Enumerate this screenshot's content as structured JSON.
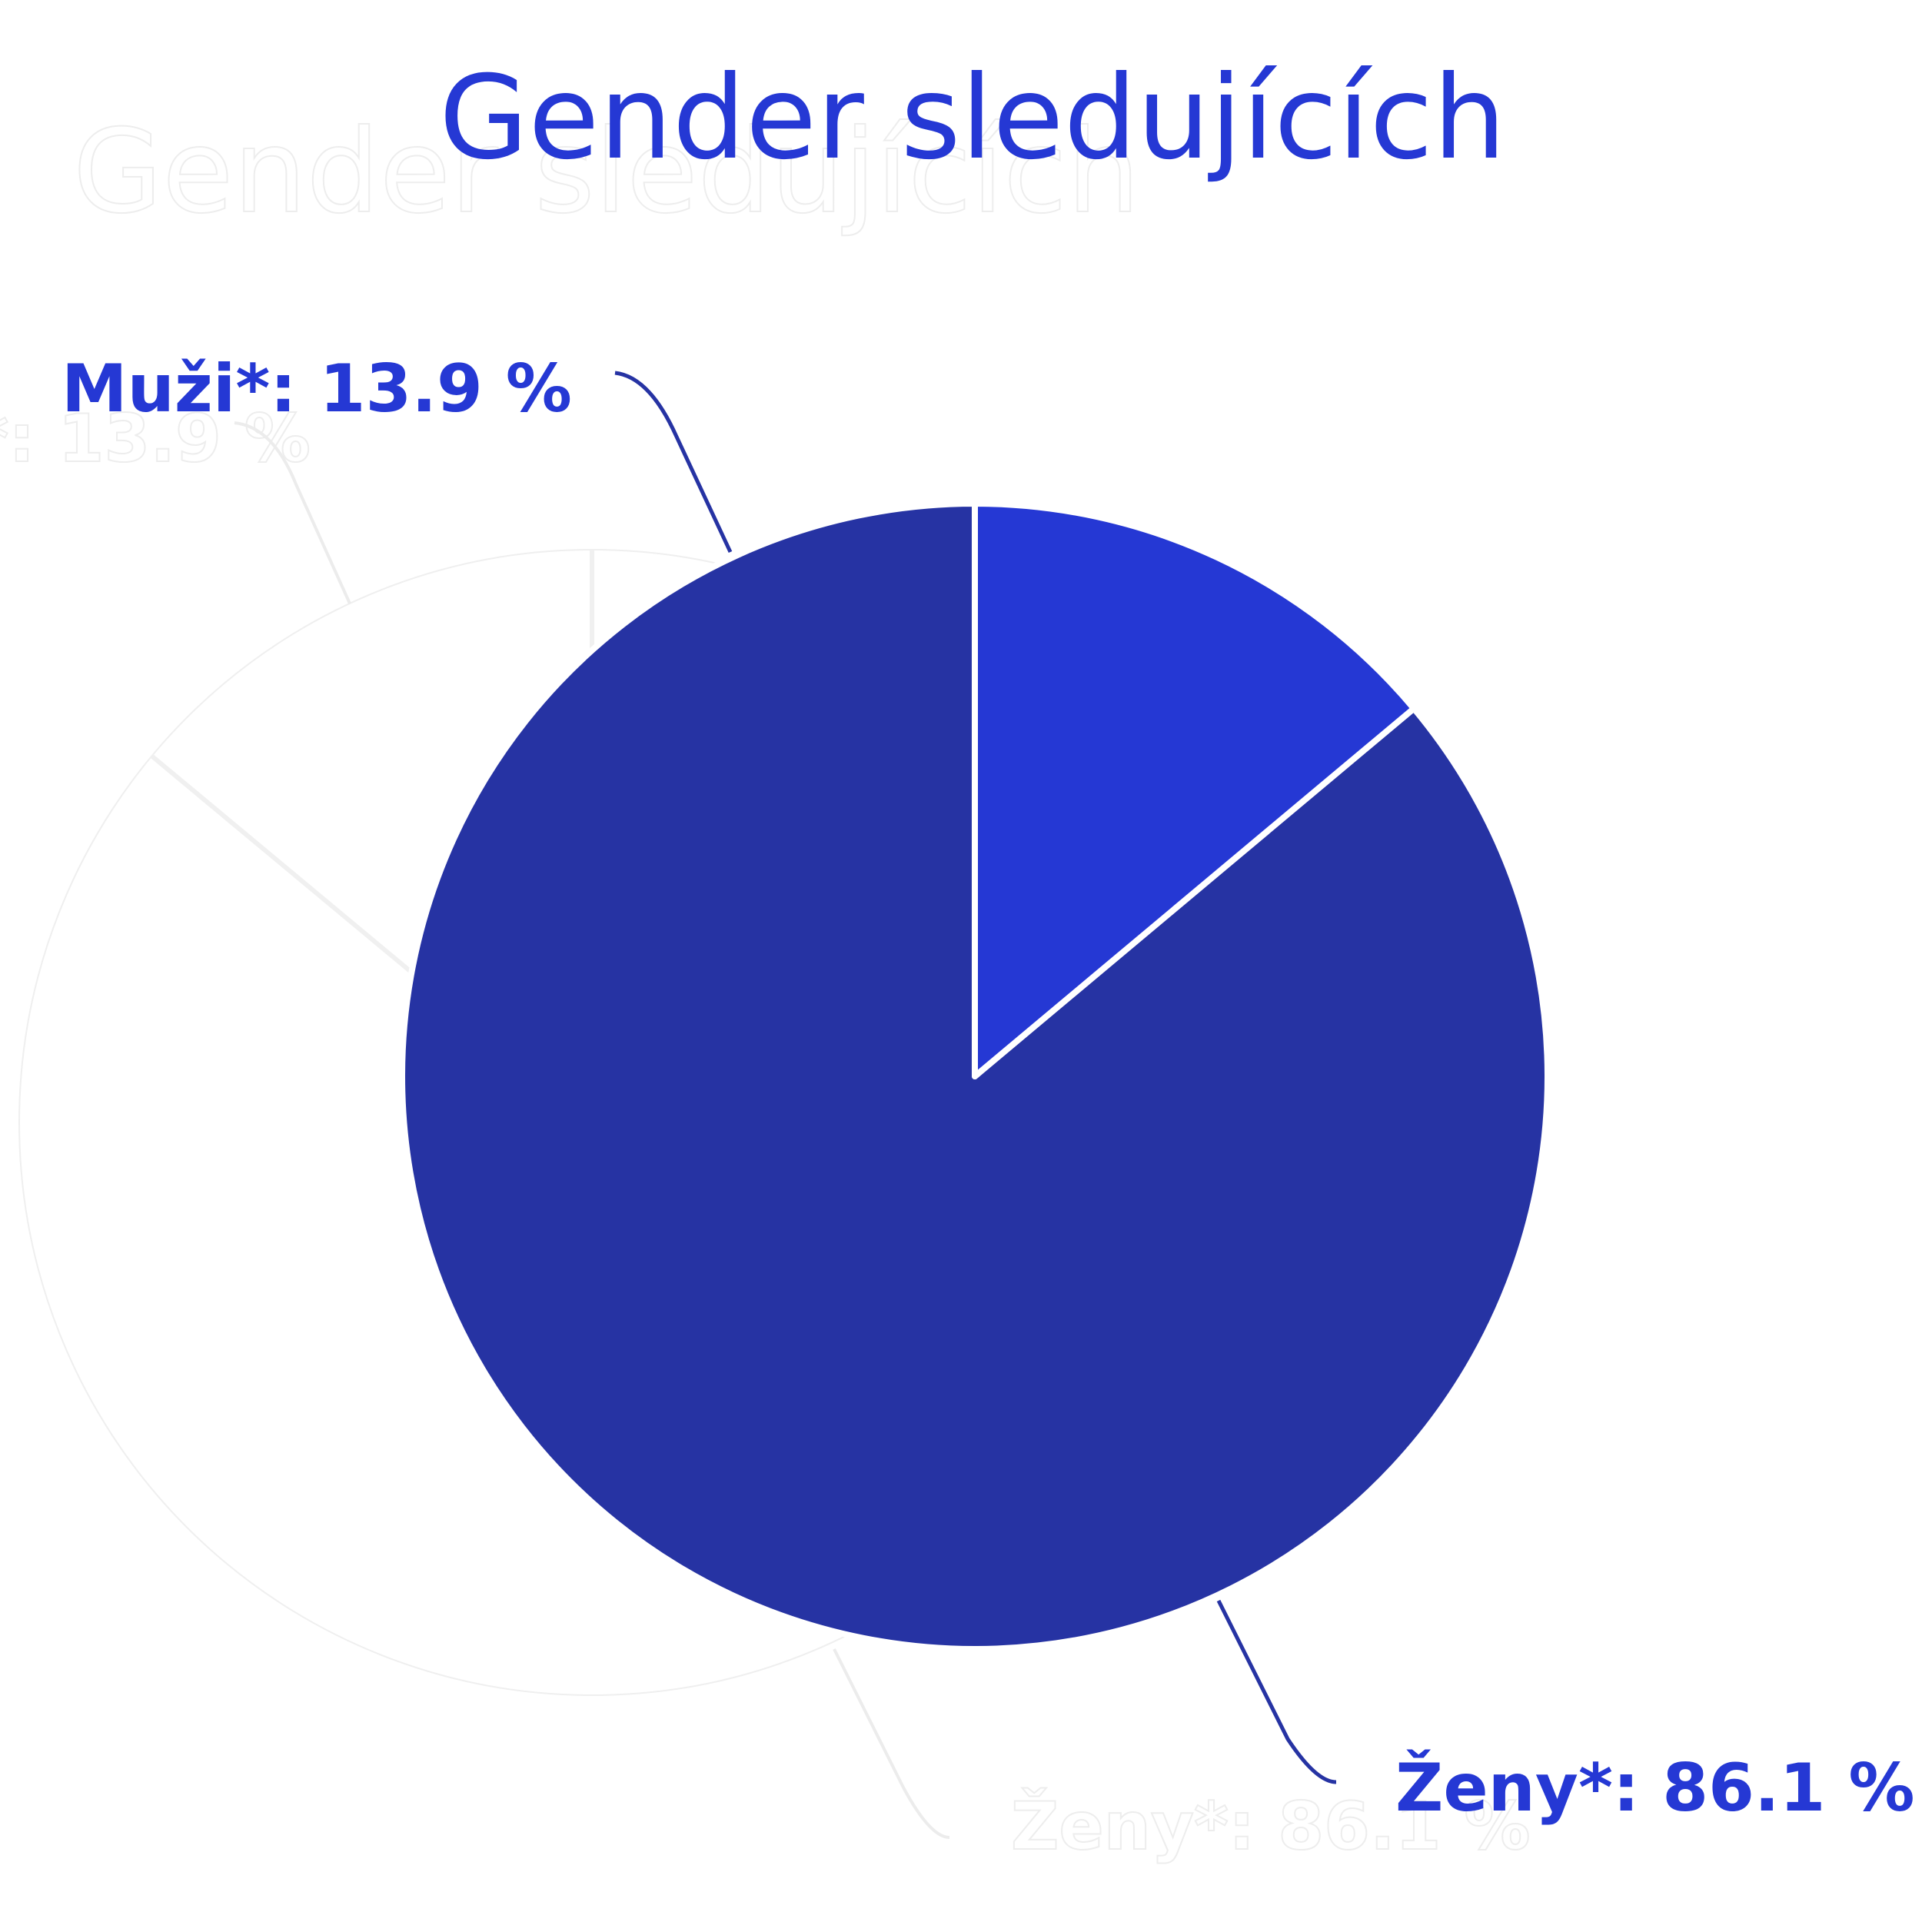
{
  "chart_data": {
    "type": "pie",
    "title": "Gender sledujících",
    "start_angle_deg": 0,
    "direction": "counterclockwise",
    "slices": [
      {
        "label": "Ženy*",
        "value": 86.1,
        "display": "Ženy*: 86.1 %",
        "color": "#2633a3"
      },
      {
        "label": "Muži*",
        "value": 13.9,
        "display": "Muži*: 13.9 %",
        "color": "#2538d4"
      }
    ],
    "unit": "%",
    "label_color": "#2538d4",
    "leader_color": "#2633a3"
  }
}
